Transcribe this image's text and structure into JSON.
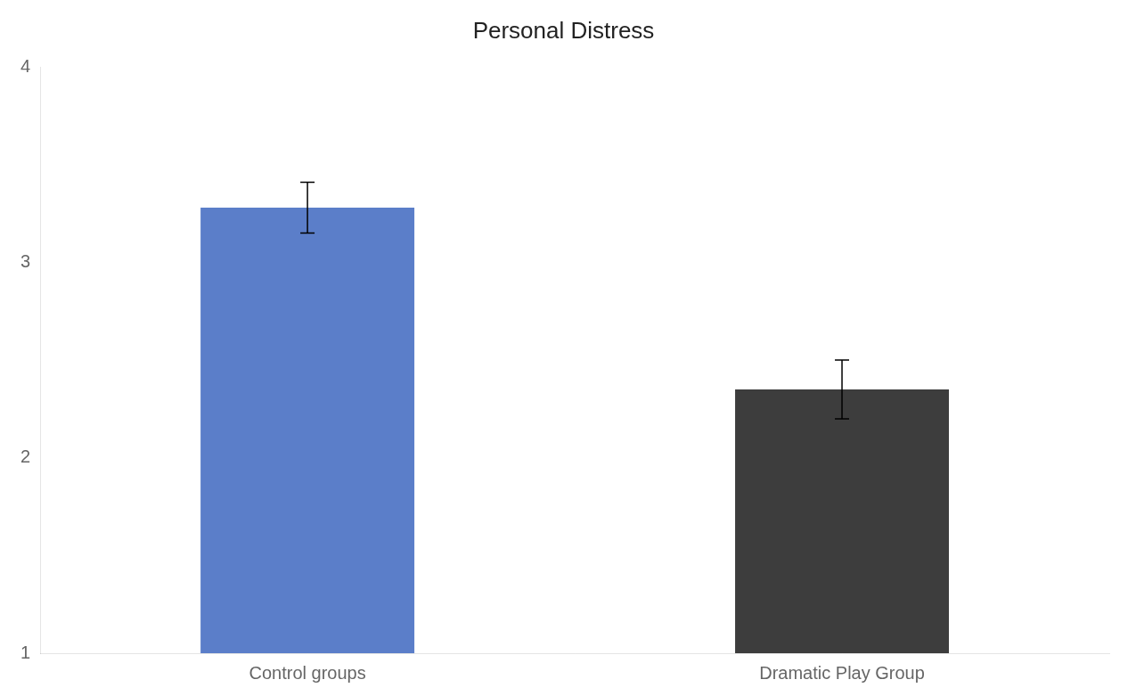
{
  "chart_data": {
    "type": "bar",
    "title": "Personal Distress",
    "categories": [
      "Control groups",
      "Dramatic Play Group"
    ],
    "values": [
      3.28,
      2.35
    ],
    "errors": [
      0.13,
      0.15
    ],
    "colors": [
      "#5b7ec9",
      "#3d3d3d"
    ],
    "ylim": [
      1,
      4
    ],
    "yticks": [
      1,
      2,
      3,
      4
    ],
    "grid": false
  }
}
